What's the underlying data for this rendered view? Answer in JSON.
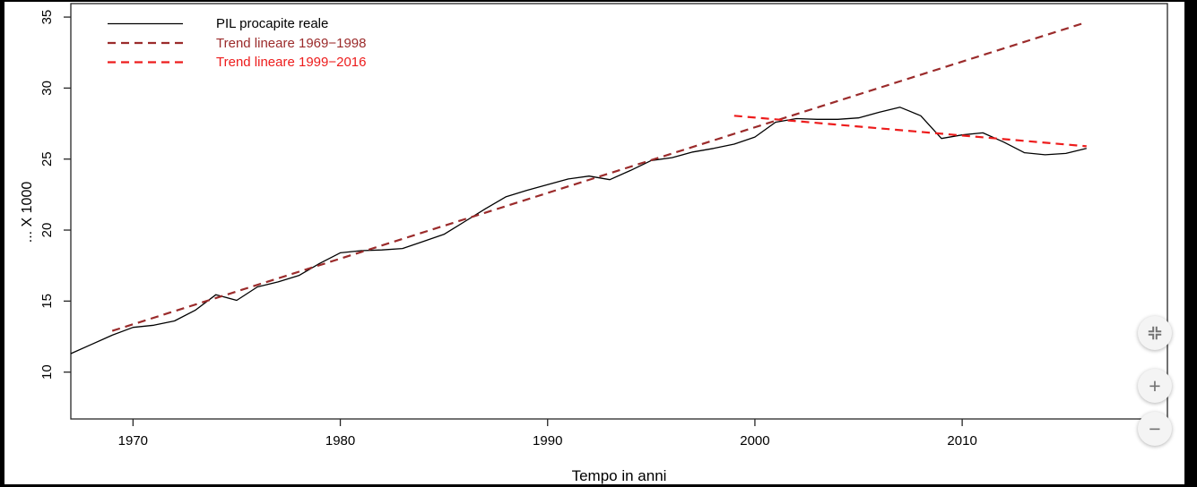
{
  "window": {
    "background": "#ffffff",
    "frame_color": "#000000"
  },
  "chart_data": {
    "type": "line",
    "title": "",
    "xlabel": "Tempo in anni",
    "ylabel": "... X 1000",
    "x_ticks": [
      1970,
      1980,
      1990,
      2000,
      2010
    ],
    "y_ticks": [
      10,
      15,
      20,
      25,
      30,
      35
    ],
    "xlim": [
      1967.0,
      2019.9
    ],
    "ylim": [
      6.7,
      35.95
    ],
    "grid": false,
    "legend_position": "top-left",
    "series": [
      {
        "name": "PIL procapite reale",
        "color": "#000000",
        "dash": "solid",
        "width": 1.3,
        "x": [
          1967,
          1968,
          1969,
          1970,
          1971,
          1972,
          1973,
          1974,
          1975,
          1976,
          1977,
          1978,
          1979,
          1980,
          1981,
          1982,
          1983,
          1984,
          1985,
          1986,
          1987,
          1988,
          1989,
          1990,
          1991,
          1992,
          1993,
          1994,
          1995,
          1996,
          1997,
          1998,
          1999,
          2000,
          2001,
          2002,
          2003,
          2004,
          2005,
          2006,
          2007,
          2008,
          2009,
          2010,
          2011,
          2012,
          2013,
          2014,
          2015,
          2016
        ],
        "values": [
          11.3,
          11.95,
          12.6,
          13.15,
          13.3,
          13.6,
          14.35,
          15.45,
          15.05,
          16.0,
          16.35,
          16.8,
          17.65,
          18.4,
          18.55,
          18.6,
          18.7,
          19.2,
          19.7,
          20.6,
          21.5,
          22.35,
          22.8,
          23.2,
          23.6,
          23.8,
          23.55,
          24.2,
          24.9,
          25.1,
          25.5,
          25.75,
          26.05,
          26.55,
          27.6,
          27.85,
          27.8,
          27.8,
          27.9,
          28.3,
          28.65,
          28.05,
          26.45,
          26.7,
          26.85,
          26.2,
          25.45,
          25.3,
          25.4,
          25.75
        ]
      },
      {
        "name": "Trend lineare 1969−1998",
        "color": "#9b2b2b",
        "dash": "dashed",
        "width": 2.2,
        "x": [
          1969,
          2016
        ],
        "values": [
          12.9,
          34.64
        ]
      },
      {
        "name": "Trend lineare 1999−2016",
        "color": "#ed1c1c",
        "dash": "dashed",
        "width": 2.2,
        "x": [
          1999,
          2016
        ],
        "values": [
          28.05,
          25.9
        ]
      }
    ]
  },
  "controls": {
    "zoom_in_label": "+",
    "zoom_out_label": "−",
    "fit_icon": "fit-to-window-icon"
  }
}
